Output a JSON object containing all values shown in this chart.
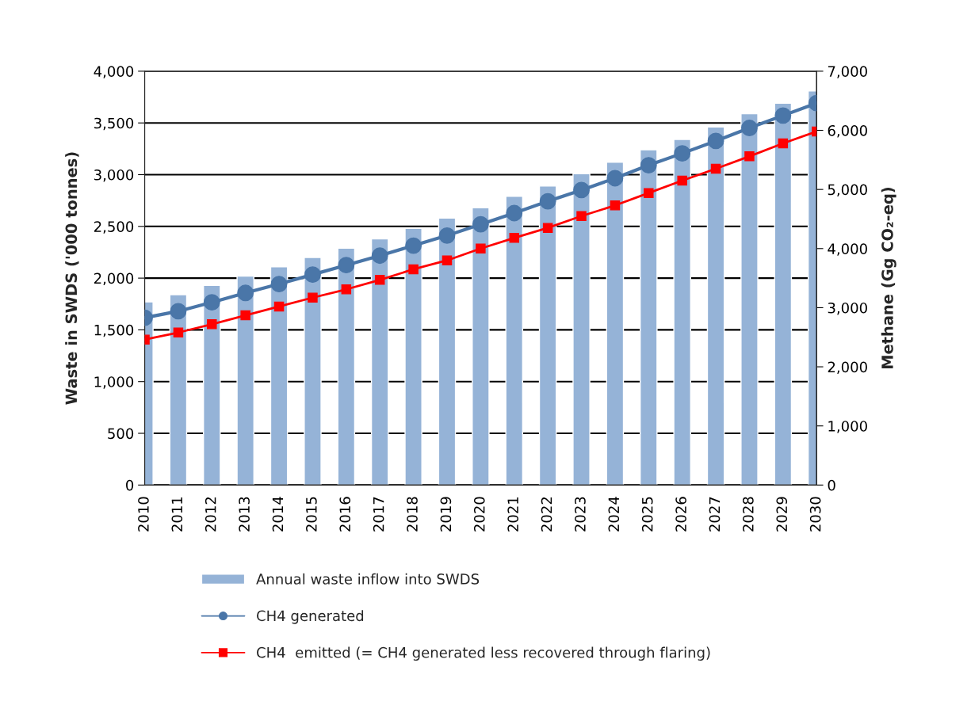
{
  "chart_data": {
    "type": "bar",
    "categories": [
      "2010",
      "2011",
      "2012",
      "2013",
      "2014",
      "2015",
      "2016",
      "2017",
      "2018",
      "2019",
      "2020",
      "2021",
      "2022",
      "2023",
      "2024",
      "2025",
      "2026",
      "2027",
      "2028",
      "2029",
      "2030"
    ],
    "ylabel": "Waste in SWDS ('000 tonnes)",
    "y2label": "Methane (Gg CO₂-eq)",
    "series": [
      {
        "name": "Annual waste inflow into SWDS",
        "color": "#95b3d7",
        "values": [
          1770,
          1840,
          1930,
          2020,
          2110,
          2200,
          2290,
          2380,
          2480,
          2580,
          2680,
          2790,
          2890,
          3010,
          3120,
          3240,
          3340,
          3460,
          3590,
          3690,
          3810
        ]
      },
      {
        "name": "CH4 generated",
        "type": "line",
        "axis": "y2",
        "color": "#4a76a8",
        "marker": "circle",
        "values": [
          2830,
          2940,
          3090,
          3250,
          3400,
          3560,
          3720,
          3880,
          4050,
          4220,
          4410,
          4600,
          4800,
          4990,
          5190,
          5410,
          5610,
          5820,
          6040,
          6250,
          6460
        ]
      },
      {
        "name": "CH4  emitted (= CH4 generated less recovered through flaring)",
        "type": "line",
        "axis": "y2",
        "color": "#ff0000",
        "marker": "square",
        "values": [
          2460,
          2580,
          2720,
          2870,
          3020,
          3170,
          3310,
          3470,
          3650,
          3800,
          4000,
          4180,
          4350,
          4550,
          4730,
          4940,
          5150,
          5350,
          5560,
          5780,
          5980
        ]
      }
    ],
    "ylim": [
      0,
      4000
    ],
    "yticks": [
      {
        "value": 0,
        "label": "0"
      },
      {
        "value": 500,
        "label": "500"
      },
      {
        "value": 1000,
        "label": "1,000"
      },
      {
        "value": 1500,
        "label": "1,500"
      },
      {
        "value": 2000,
        "label": "2,000"
      },
      {
        "value": 2500,
        "label": "2,500"
      },
      {
        "value": 3000,
        "label": "3,000"
      },
      {
        "value": 3500,
        "label": "3,500"
      },
      {
        "value": 4000,
        "label": "4,000"
      }
    ],
    "y2lim": [
      0,
      7000
    ],
    "y2ticks": [
      {
        "value": 0,
        "label": "0"
      },
      {
        "value": 1000,
        "label": "1,000"
      },
      {
        "value": 2000,
        "label": "2,000"
      },
      {
        "value": 3000,
        "label": "3,000"
      },
      {
        "value": 4000,
        "label": "4,000"
      },
      {
        "value": 5000,
        "label": "5,000"
      },
      {
        "value": 6000,
        "label": "6,000"
      },
      {
        "value": 7000,
        "label": "7,000"
      }
    ],
    "grid": "y",
    "legend": "bottom"
  }
}
